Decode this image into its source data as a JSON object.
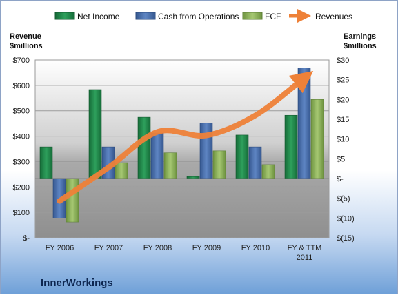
{
  "chart_data": {
    "type": "bar",
    "company": "InnerWorkings",
    "categories": [
      "FY 2006",
      "FY 2007",
      "FY 2008",
      "FY 2009",
      "FY 2010",
      "FY & TTM|2011"
    ],
    "series": [
      {
        "name": "Net Income",
        "axis": "right",
        "color": "#1f8a4c",
        "values": [
          8,
          22.5,
          15.5,
          0.5,
          11,
          16
        ]
      },
      {
        "name": "Cash from Operations",
        "axis": "right",
        "color": "#4a6fad",
        "values": [
          -10,
          8,
          11.5,
          14,
          8,
          28
        ]
      },
      {
        "name": "FCF",
        "axis": "right",
        "color": "#8fb557",
        "values": [
          -11,
          4,
          6.5,
          7,
          3.5,
          20
        ]
      }
    ],
    "line_series": {
      "name": "Revenues",
      "axis": "left",
      "color": "#ee8138",
      "values": [
        145,
        277,
        417,
        403,
        482,
        630
      ]
    },
    "left_axis": {
      "title_line1": "Revenue",
      "title_line2": "$millions",
      "ticks": [
        "$700",
        "$600",
        "$500",
        "$400",
        "$300",
        "$200",
        "$100",
        "$-"
      ],
      "ylim": [
        0,
        700
      ]
    },
    "right_axis": {
      "title_line1": "Earnings",
      "title_line2": "$millions",
      "ticks": [
        "$30",
        "$25",
        "$20",
        "$15",
        "$10",
        "$5",
        "$-",
        "$(5)",
        "$(10)",
        "$(15)"
      ],
      "ylim": [
        -15,
        30
      ]
    },
    "grid": true,
    "legend_position": "top"
  }
}
